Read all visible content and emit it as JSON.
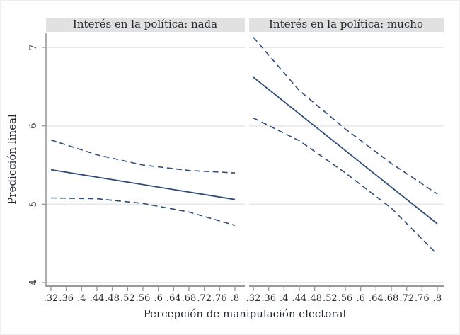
{
  "chart_data": {
    "type": "line",
    "title": "",
    "xlabel": "Percepción de manipulación electoral",
    "ylabel": "Predicción lineal",
    "x_tick_labels": [
      ".32",
      ".36",
      ".4",
      ".44",
      ".48",
      ".52",
      ".56",
      ".6",
      ".64",
      ".68",
      ".72",
      ".76",
      ".8"
    ],
    "x_tick_values": [
      0.32,
      0.36,
      0.4,
      0.44,
      0.48,
      0.52,
      0.56,
      0.6,
      0.64,
      0.68,
      0.72,
      0.76,
      0.8
    ],
    "y_tick_labels": [
      "4",
      "5",
      "6",
      "7"
    ],
    "y_tick_values": [
      4,
      5,
      6,
      7
    ],
    "xlim": [
      0.307,
      0.826
    ],
    "ylim": [
      3.96,
      7.16
    ],
    "grid": "horizontal",
    "legend": "none",
    "panels": [
      {
        "title": "Interés en la política: nada",
        "series": [
          {
            "name": "linear-prediction",
            "style": "solid",
            "points": [
              [
                0.32,
                5.44
              ],
              [
                0.8,
                5.06
              ]
            ]
          },
          {
            "name": "ci-upper",
            "style": "dashed",
            "points": [
              [
                0.32,
                5.82
              ],
              [
                0.44,
                5.63
              ],
              [
                0.56,
                5.5
              ],
              [
                0.68,
                5.43
              ],
              [
                0.8,
                5.4
              ]
            ]
          },
          {
            "name": "ci-lower",
            "style": "dashed",
            "points": [
              [
                0.32,
                5.08
              ],
              [
                0.44,
                5.07
              ],
              [
                0.56,
                5.01
              ],
              [
                0.68,
                4.9
              ],
              [
                0.8,
                4.73
              ]
            ]
          }
        ]
      },
      {
        "title": "Interés en la política: mucho",
        "series": [
          {
            "name": "linear-prediction",
            "style": "solid",
            "points": [
              [
                0.32,
                6.62
              ],
              [
                0.8,
                4.75
              ]
            ]
          },
          {
            "name": "ci-upper",
            "style": "dashed",
            "points": [
              [
                0.32,
                7.13
              ],
              [
                0.44,
                6.45
              ],
              [
                0.56,
                5.96
              ],
              [
                0.68,
                5.52
              ],
              [
                0.8,
                5.13
              ]
            ]
          },
          {
            "name": "ci-lower",
            "style": "dashed",
            "points": [
              [
                0.32,
                6.1
              ],
              [
                0.44,
                5.81
              ],
              [
                0.56,
                5.4
              ],
              [
                0.68,
                4.95
              ],
              [
                0.8,
                4.36
              ]
            ]
          }
        ]
      }
    ],
    "colors": {
      "series": "#2f4d74",
      "grid": "#e9e9e9",
      "header_bg": "#e1e1e1",
      "axis": "#999999",
      "tick_text": "#2b2b2b",
      "title_text": "#23282e",
      "background": "#ffffff",
      "frame": "#f0f0f0"
    }
  }
}
